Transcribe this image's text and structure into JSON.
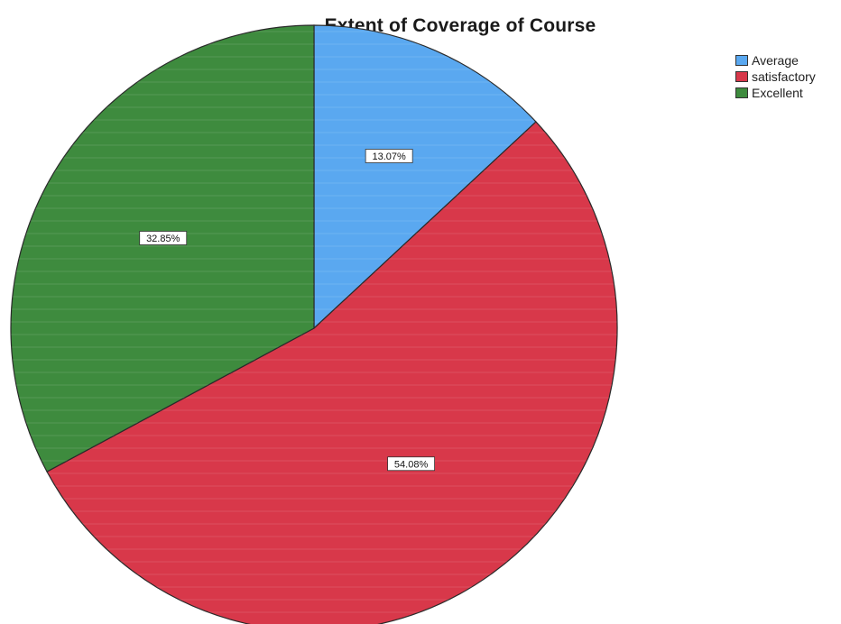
{
  "chart_data": {
    "type": "pie",
    "title": "Extent of Coverage of Course",
    "categories": [
      "Average",
      "satisfactory",
      "Excellent"
    ],
    "values": [
      13.07,
      54.08,
      32.85
    ],
    "labels": [
      "13.07%",
      "54.08%",
      "32.85%"
    ],
    "colors": [
      "#5aa8f0",
      "#d8384a",
      "#3e8b3e"
    ],
    "legend_position": "top-right"
  }
}
